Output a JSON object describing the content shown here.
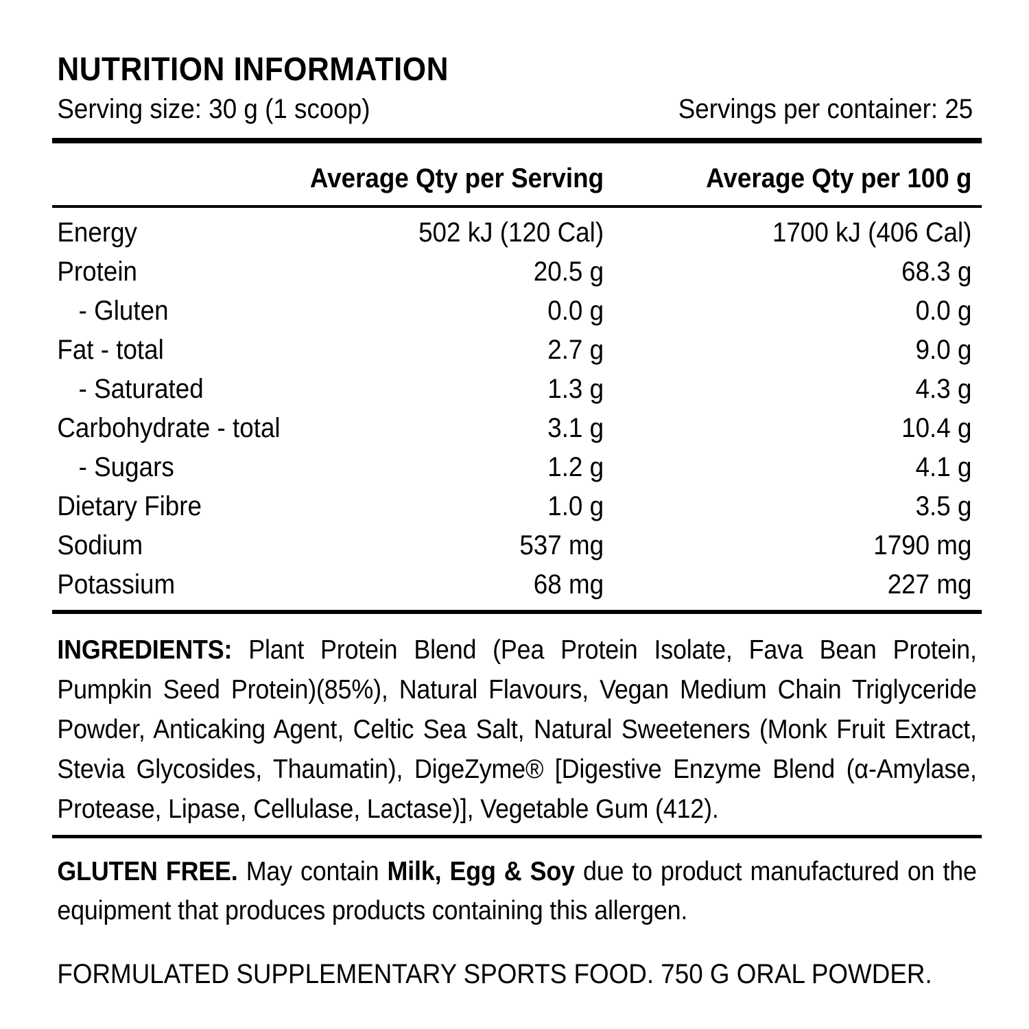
{
  "colors": {
    "text": "#000000",
    "background": "#ffffff"
  },
  "panel": {
    "title": "NUTRITION INFORMATION",
    "serving_size": "Serving size: 30 g (1 scoop)",
    "servings_per_container": "Servings per container: 25"
  },
  "table": {
    "col_serving": "Average Qty per Serving",
    "col_100g": "Average Qty per 100 g",
    "rows": [
      {
        "label": "Energy",
        "per_serving": "502 kJ (120 Cal)",
        "per_100g": "1700 kJ (406 Cal)"
      },
      {
        "label": "Protein",
        "per_serving": "20.5 g",
        "per_100g": "68.3 g"
      },
      {
        "label": "- Gluten",
        "per_serving": "0.0 g",
        "per_100g": "0.0 g"
      },
      {
        "label": "Fat - total",
        "per_serving": "2.7 g",
        "per_100g": "9.0 g"
      },
      {
        "label": "- Saturated",
        "per_serving": "1.3 g",
        "per_100g": "4.3 g"
      },
      {
        "label": "Carbohydrate - total",
        "per_serving": "3.1 g",
        "per_100g": "10.4 g"
      },
      {
        "label": "- Sugars",
        "per_serving": "1.2 g",
        "per_100g": "4.1 g"
      },
      {
        "label": "Dietary Fibre",
        "per_serving": "1.0 g",
        "per_100g": "3.5 g"
      },
      {
        "label": "Sodium",
        "per_serving": "537 mg",
        "per_100g": "1790 mg"
      },
      {
        "label": "Potassium",
        "per_serving": "68 mg",
        "per_100g": "227 mg"
      }
    ]
  },
  "ingredients": {
    "heading": "INGREDIENTS:",
    "text": " Plant Protein Blend (Pea Protein Isolate, Fava Bean Protein, Pumpkin Seed Protein)(85%), Natural Flavours, Vegan Medium Chain Triglyceride Powder, Anticaking Agent, Celtic Sea Salt, Natural Sweeteners (Monk Fruit Extract, Stevia Glycosides, Thaumatin), DigeZyme® [Digestive Enzyme Blend (α-Amylase, Protease, Lipase, Cellulase, Lactase)], Vegetable Gum (412)."
  },
  "allergen": {
    "gluten_free": "GLUTEN FREE.",
    "text1": " May contain ",
    "allergens": "Milk, Egg & Soy",
    "text2": " due to product manufactured on the equipment that produces products containing this allergen."
  },
  "footer": "FORMULATED SUPPLEMENTARY SPORTS FOOD. 750 G ORAL POWDER."
}
